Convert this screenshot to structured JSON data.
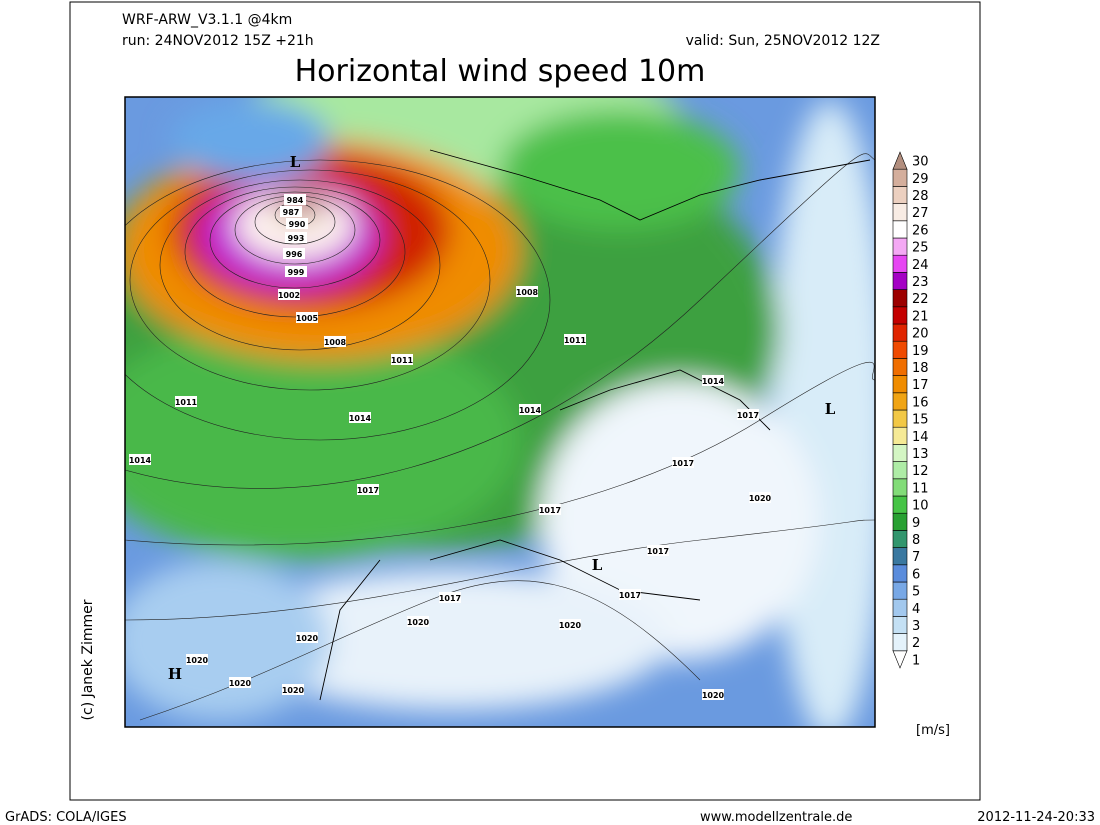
{
  "header": {
    "model": "WRF-ARW_V3.1.1 @4km",
    "run": "run: 24NOV2012 15Z +21h",
    "valid": "valid: Sun, 25NOV2012 12Z",
    "title": "Horizontal wind speed 10m"
  },
  "colorbar": {
    "unit": "[m/s]",
    "levels": [
      {
        "value": 1,
        "color": "#ffffff"
      },
      {
        "value": 2,
        "color": "#e4f2fb"
      },
      {
        "value": 3,
        "color": "#c4e0f4"
      },
      {
        "value": 4,
        "color": "#a2c8ee"
      },
      {
        "value": 5,
        "color": "#78a8e6"
      },
      {
        "value": 6,
        "color": "#5a8cdc"
      },
      {
        "value": 7,
        "color": "#3a78a0"
      },
      {
        "value": 8,
        "color": "#32966e"
      },
      {
        "value": 9,
        "color": "#28a032"
      },
      {
        "value": 10,
        "color": "#46c446"
      },
      {
        "value": 11,
        "color": "#82dc78"
      },
      {
        "value": 12,
        "color": "#aeeca6"
      },
      {
        "value": 13,
        "color": "#d4f6c4"
      },
      {
        "value": 14,
        "color": "#f6ea96"
      },
      {
        "value": 15,
        "color": "#f2c846"
      },
      {
        "value": 16,
        "color": "#f0a414"
      },
      {
        "value": 17,
        "color": "#f08c00"
      },
      {
        "value": 18,
        "color": "#f06e00"
      },
      {
        "value": 19,
        "color": "#f04a00"
      },
      {
        "value": 20,
        "color": "#e02400"
      },
      {
        "value": 21,
        "color": "#c40000"
      },
      {
        "value": 22,
        "color": "#9c0000"
      },
      {
        "value": 23,
        "color": "#a400c4"
      },
      {
        "value": 24,
        "color": "#e646f2"
      },
      {
        "value": 25,
        "color": "#f4a8f4"
      },
      {
        "value": 26,
        "color": "#ffffff"
      },
      {
        "value": 27,
        "color": "#f8ece4"
      },
      {
        "value": 28,
        "color": "#ecd0c0"
      },
      {
        "value": 29,
        "color": "#d4ae9c"
      },
      {
        "value": 30,
        "color": "#b28e7e"
      }
    ]
  },
  "map": {
    "isobar_labels": [
      984,
      987,
      990,
      993,
      996,
      999,
      1002,
      1005,
      1008,
      1011,
      1011,
      1014,
      1014,
      1008,
      1011,
      1014,
      1014,
      1017,
      1017,
      1017,
      1017,
      1020,
      1017,
      1017,
      1017,
      1020,
      1020,
      1020,
      1020,
      1020,
      1020,
      1020
    ],
    "pressure_centers": [
      "L",
      "L",
      "L",
      "H"
    ]
  },
  "credit": "(c) Janek Zimmer",
  "footer": {
    "left": "GrADS: COLA/IGES",
    "center": "www.modellzentrale.de",
    "right": "2012-11-24-20:33"
  }
}
